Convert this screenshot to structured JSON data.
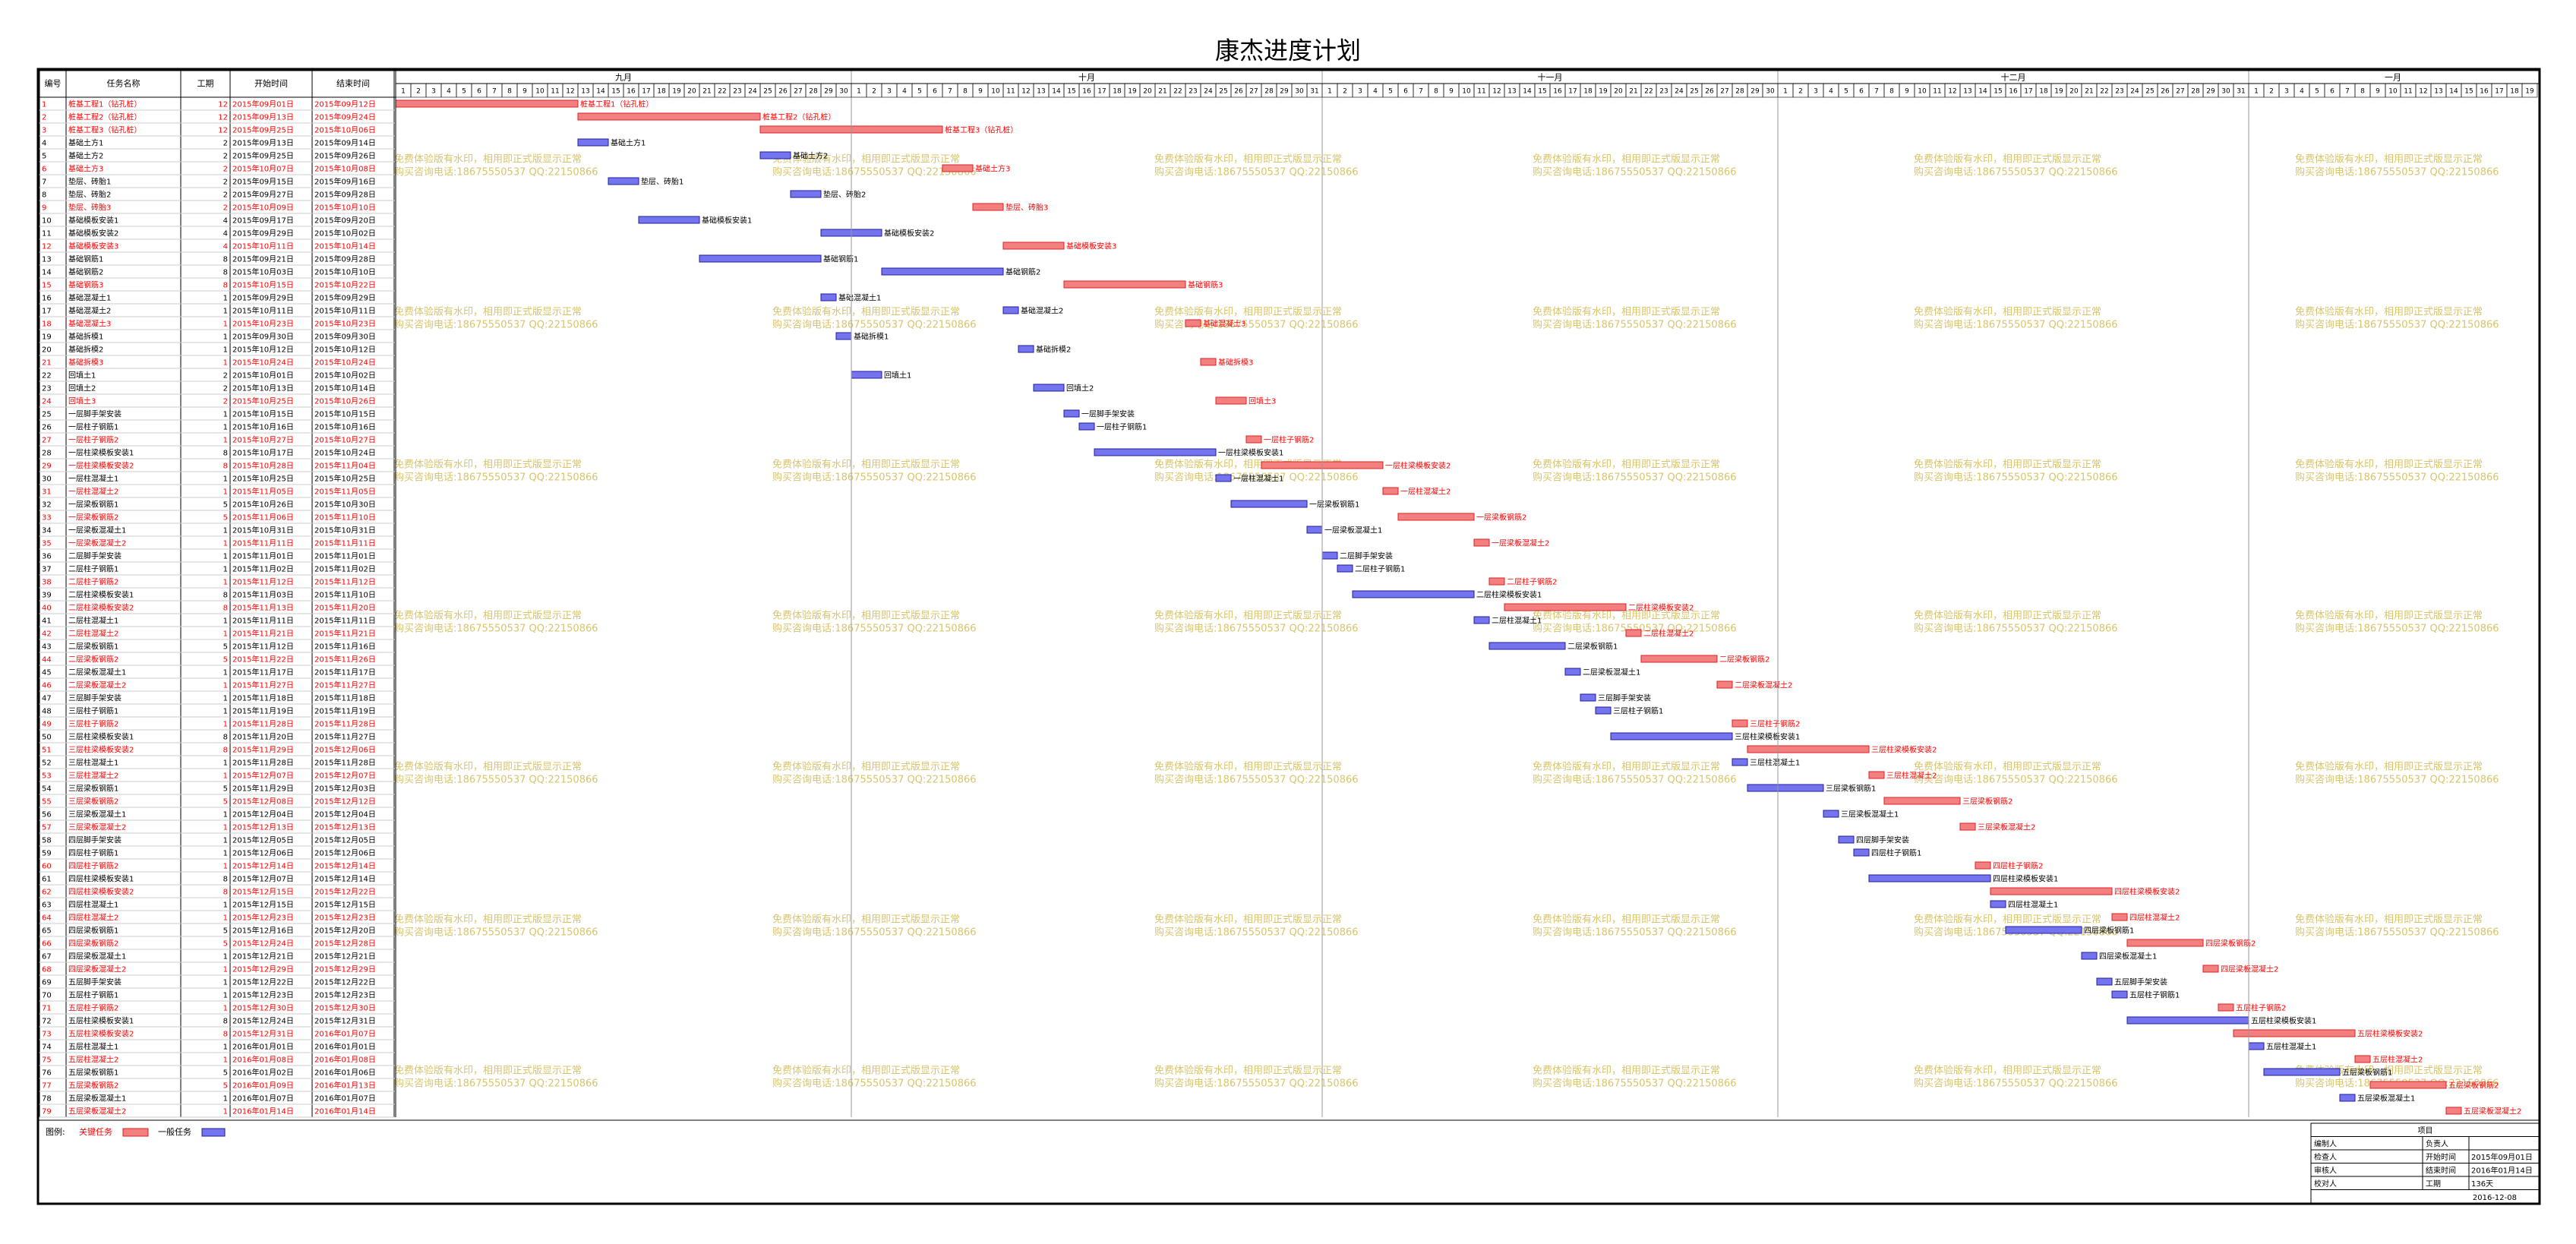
{
  "header": {
    "title": "康杰进度计划"
  },
  "table": {
    "columns": [
      "编号",
      "任务名称",
      "工期",
      "开始时间",
      "结束时间"
    ],
    "critical_text_color": "#ff0000",
    "rows": [
      [
        1,
        "桩基工程1（钻孔桩）",
        12,
        "2015年09月01日",
        "2015年09月12日",
        true
      ],
      [
        2,
        "桩基工程2（钻孔桩）",
        12,
        "2015年09月13日",
        "2015年09月24日",
        true
      ],
      [
        3,
        "桩基工程3（钻孔桩）",
        12,
        "2015年09月25日",
        "2015年10月06日",
        true
      ],
      [
        4,
        "基础土方1",
        2,
        "2015年09月13日",
        "2015年09月14日",
        false
      ],
      [
        5,
        "基础土方2",
        2,
        "2015年09月25日",
        "2015年09月26日",
        false
      ],
      [
        6,
        "基础土方3",
        2,
        "2015年10月07日",
        "2015年10月08日",
        true
      ],
      [
        7,
        "垫层、砖胎1",
        2,
        "2015年09月15日",
        "2015年09月16日",
        false
      ],
      [
        8,
        "垫层、砖胎2",
        2,
        "2015年09月27日",
        "2015年09月28日",
        false
      ],
      [
        9,
        "垫层、砖胎3",
        2,
        "2015年10月09日",
        "2015年10月10日",
        true
      ],
      [
        10,
        "基础模板安装1",
        4,
        "2015年09月17日",
        "2015年09月20日",
        false
      ],
      [
        11,
        "基础模板安装2",
        4,
        "2015年09月29日",
        "2015年10月02日",
        false
      ],
      [
        12,
        "基础模板安装3",
        4,
        "2015年10月11日",
        "2015年10月14日",
        true
      ],
      [
        13,
        "基础钢筋1",
        8,
        "2015年09月21日",
        "2015年09月28日",
        false
      ],
      [
        14,
        "基础钢筋2",
        8,
        "2015年10月03日",
        "2015年10月10日",
        false
      ],
      [
        15,
        "基础钢筋3",
        8,
        "2015年10月15日",
        "2015年10月22日",
        true
      ],
      [
        16,
        "基础混凝土1",
        1,
        "2015年09月29日",
        "2015年09月29日",
        false
      ],
      [
        17,
        "基础混凝土2",
        1,
        "2015年10月11日",
        "2015年10月11日",
        false
      ],
      [
        18,
        "基础混凝土3",
        1,
        "2015年10月23日",
        "2015年10月23日",
        true
      ],
      [
        19,
        "基础拆模1",
        1,
        "2015年09月30日",
        "2015年09月30日",
        false
      ],
      [
        20,
        "基础拆模2",
        1,
        "2015年10月12日",
        "2015年10月12日",
        false
      ],
      [
        21,
        "基础拆模3",
        1,
        "2015年10月24日",
        "2015年10月24日",
        true
      ],
      [
        22,
        "回填土1",
        2,
        "2015年10月01日",
        "2015年10月02日",
        false
      ],
      [
        23,
        "回填土2",
        2,
        "2015年10月13日",
        "2015年10月14日",
        false
      ],
      [
        24,
        "回填土3",
        2,
        "2015年10月25日",
        "2015年10月26日",
        true
      ],
      [
        25,
        "一层脚手架安装",
        1,
        "2015年10月15日",
        "2015年10月15日",
        false
      ],
      [
        26,
        "一层柱子钢筋1",
        1,
        "2015年10月16日",
        "2015年10月16日",
        false
      ],
      [
        27,
        "一层柱子钢筋2",
        1,
        "2015年10月27日",
        "2015年10月27日",
        true
      ],
      [
        28,
        "一层柱梁模板安装1",
        8,
        "2015年10月17日",
        "2015年10月24日",
        false
      ],
      [
        29,
        "一层柱梁模板安装2",
        8,
        "2015年10月28日",
        "2015年11月04日",
        true
      ],
      [
        30,
        "一层柱混凝土1",
        1,
        "2015年10月25日",
        "2015年10月25日",
        false
      ],
      [
        31,
        "一层柱混凝土2",
        1,
        "2015年11月05日",
        "2015年11月05日",
        true
      ],
      [
        32,
        "一层梁板钢筋1",
        5,
        "2015年10月26日",
        "2015年10月30日",
        false
      ],
      [
        33,
        "一层梁板钢筋2",
        5,
        "2015年11月06日",
        "2015年11月10日",
        true
      ],
      [
        34,
        "一层梁板混凝土1",
        1,
        "2015年10月31日",
        "2015年10月31日",
        false
      ],
      [
        35,
        "一层梁板混凝土2",
        1,
        "2015年11月11日",
        "2015年11月11日",
        true
      ],
      [
        36,
        "二层脚手架安装",
        1,
        "2015年11月01日",
        "2015年11月01日",
        false
      ],
      [
        37,
        "二层柱子钢筋1",
        1,
        "2015年11月02日",
        "2015年11月02日",
        false
      ],
      [
        38,
        "二层柱子钢筋2",
        1,
        "2015年11月12日",
        "2015年11月12日",
        true
      ],
      [
        39,
        "二层柱梁模板安装1",
        8,
        "2015年11月03日",
        "2015年11月10日",
        false
      ],
      [
        40,
        "二层柱梁模板安装2",
        8,
        "2015年11月13日",
        "2015年11月20日",
        true
      ],
      [
        41,
        "二层柱混凝土1",
        1,
        "2015年11月11日",
        "2015年11月11日",
        false
      ],
      [
        42,
        "二层柱混凝土2",
        1,
        "2015年11月21日",
        "2015年11月21日",
        true
      ],
      [
        43,
        "二层梁板钢筋1",
        5,
        "2015年11月12日",
        "2015年11月16日",
        false
      ],
      [
        44,
        "二层梁板钢筋2",
        5,
        "2015年11月22日",
        "2015年11月26日",
        true
      ],
      [
        45,
        "二层梁板混凝土1",
        1,
        "2015年11月17日",
        "2015年11月17日",
        false
      ],
      [
        46,
        "二层梁板混凝土2",
        1,
        "2015年11月27日",
        "2015年11月27日",
        true
      ],
      [
        47,
        "三层脚手架安装",
        1,
        "2015年11月18日",
        "2015年11月18日",
        false
      ],
      [
        48,
        "三层柱子钢筋1",
        1,
        "2015年11月19日",
        "2015年11月19日",
        false
      ],
      [
        49,
        "三层柱子钢筋2",
        1,
        "2015年11月28日",
        "2015年11月28日",
        true
      ],
      [
        50,
        "三层柱梁模板安装1",
        8,
        "2015年11月20日",
        "2015年11月27日",
        false
      ],
      [
        51,
        "三层柱梁模板安装2",
        8,
        "2015年11月29日",
        "2015年12月06日",
        true
      ],
      [
        52,
        "三层柱混凝土1",
        1,
        "2015年11月28日",
        "2015年11月28日",
        false
      ],
      [
        53,
        "三层柱混凝土2",
        1,
        "2015年12月07日",
        "2015年12月07日",
        true
      ],
      [
        54,
        "三层梁板钢筋1",
        5,
        "2015年11月29日",
        "2015年12月03日",
        false
      ],
      [
        55,
        "三层梁板钢筋2",
        5,
        "2015年12月08日",
        "2015年12月12日",
        true
      ],
      [
        56,
        "三层梁板混凝土1",
        1,
        "2015年12月04日",
        "2015年12月04日",
        false
      ],
      [
        57,
        "三层梁板混凝土2",
        1,
        "2015年12月13日",
        "2015年12月13日",
        true
      ],
      [
        58,
        "四层脚手架安装",
        1,
        "2015年12月05日",
        "2015年12月05日",
        false
      ],
      [
        59,
        "四层柱子钢筋1",
        1,
        "2015年12月06日",
        "2015年12月06日",
        false
      ],
      [
        60,
        "四层柱子钢筋2",
        1,
        "2015年12月14日",
        "2015年12月14日",
        true
      ],
      [
        61,
        "四层柱梁模板安装1",
        8,
        "2015年12月07日",
        "2015年12月14日",
        false
      ],
      [
        62,
        "四层柱梁模板安装2",
        8,
        "2015年12月15日",
        "2015年12月22日",
        true
      ],
      [
        63,
        "四层柱混凝土1",
        1,
        "2015年12月15日",
        "2015年12月15日",
        false
      ],
      [
        64,
        "四层柱混凝土2",
        1,
        "2015年12月23日",
        "2015年12月23日",
        true
      ],
      [
        65,
        "四层梁板钢筋1",
        5,
        "2015年12月16日",
        "2015年12月20日",
        false
      ],
      [
        66,
        "四层梁板钢筋2",
        5,
        "2015年12月24日",
        "2015年12月28日",
        true
      ],
      [
        67,
        "四层梁板混凝土1",
        1,
        "2015年12月21日",
        "2015年12月21日",
        false
      ],
      [
        68,
        "四层梁板混凝土2",
        1,
        "2015年12月29日",
        "2015年12月29日",
        true
      ],
      [
        69,
        "五层脚手架安装",
        1,
        "2015年12月22日",
        "2015年12月22日",
        false
      ],
      [
        70,
        "五层柱子钢筋1",
        1,
        "2015年12月23日",
        "2015年12月23日",
        false
      ],
      [
        71,
        "五层柱子钢筋2",
        1,
        "2015年12月30日",
        "2015年12月30日",
        true
      ],
      [
        72,
        "五层柱梁模板安装1",
        8,
        "2015年12月24日",
        "2015年12月31日",
        false
      ],
      [
        73,
        "五层柱梁模板安装2",
        8,
        "2015年12月31日",
        "2016年01月07日",
        true
      ],
      [
        74,
        "五层柱混凝土1",
        1,
        "2016年01月01日",
        "2016年01月01日",
        false
      ],
      [
        75,
        "五层柱混凝土2",
        1,
        "2016年01月08日",
        "2016年01月08日",
        true
      ],
      [
        76,
        "五层梁板钢筋1",
        5,
        "2016年01月02日",
        "2016年01月06日",
        false
      ],
      [
        77,
        "五层梁板钢筋2",
        5,
        "2016年01月09日",
        "2016年01月13日",
        true
      ],
      [
        78,
        "五层梁板混凝土1",
        1,
        "2016年01月07日",
        "2016年01月07日",
        false
      ],
      [
        79,
        "五层梁板混凝土2",
        1,
        "2016年01月14日",
        "2016年01月14日",
        true
      ]
    ]
  },
  "timeline": {
    "months": [
      {
        "label": "九月",
        "days": [
          1,
          2,
          3,
          4,
          5,
          6,
          7,
          8,
          9,
          10,
          11,
          12,
          13,
          14,
          15,
          16,
          17,
          18,
          19,
          20,
          21,
          22,
          23,
          24,
          25,
          26,
          27,
          28,
          29,
          30
        ]
      },
      {
        "label": "十月",
        "days": [
          1,
          2,
          3,
          4,
          5,
          6,
          7,
          8,
          9,
          10,
          11,
          12,
          13,
          14,
          15,
          16,
          17,
          18,
          19,
          20,
          21,
          22,
          23,
          24,
          25,
          26,
          27,
          28,
          29,
          30,
          31
        ]
      },
      {
        "label": "十一月",
        "days": [
          1,
          2,
          3,
          4,
          5,
          6,
          7,
          8,
          9,
          10,
          11,
          12,
          13,
          14,
          15,
          16,
          17,
          18,
          19,
          20,
          21,
          22,
          23,
          24,
          25,
          26,
          27,
          28,
          29,
          30
        ]
      },
      {
        "label": "十二月",
        "days": [
          1,
          2,
          3,
          4,
          5,
          6,
          7,
          8,
          9,
          10,
          11,
          12,
          13,
          14,
          15,
          16,
          17,
          18,
          19,
          20,
          21,
          22,
          23,
          24,
          25,
          26,
          27,
          28,
          29,
          30,
          31
        ]
      },
      {
        "label": "一月",
        "days": [
          1,
          2,
          3,
          4,
          5,
          6,
          7,
          8,
          9,
          10,
          11,
          12,
          13,
          14,
          15,
          16,
          17,
          18,
          19
        ]
      }
    ]
  },
  "watermark": [
    "免费体验版有水印，相用即正式版显示正常",
    "购买咨询电话:18675550537 QQ:22150866"
  ],
  "legend": {
    "title": "图例:",
    "critical": {
      "label": "关键任务",
      "color": "#f28080",
      "stroke": "#e02020"
    },
    "normal": {
      "label": "一般任务",
      "color": "#7474ee",
      "stroke": "#2020a0"
    }
  },
  "info": {
    "title": "项目",
    "rows": [
      [
        "编制人",
        "负责人"
      ],
      [
        "检查人",
        "开始时间",
        "2015年09月01日"
      ],
      [
        "审核人",
        "结束时间",
        "2016年01月14日"
      ],
      [
        "校对人",
        "工期",
        "136天"
      ]
    ],
    "date": "2016-12-08"
  }
}
